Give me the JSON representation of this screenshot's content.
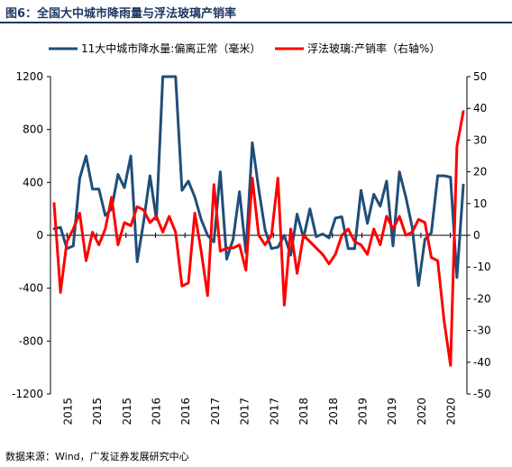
{
  "figure": {
    "title": "图6：全国大中城市降雨量与浮法玻璃产销率",
    "source": "数据来源：Wind，广发证券发展研究中心"
  },
  "chart_data": {
    "type": "line",
    "legend": [
      "11大中城市降水量:偏离正常（毫米）",
      "浮法玻璃:产销率（右轴%）"
    ],
    "colors": {
      "rain": "#1f4e79",
      "glass": "#ff0000"
    },
    "x": [
      "2015-01",
      "2015-02",
      "2015-03",
      "2015-04",
      "2015-05",
      "2015-06",
      "2015-07",
      "2015-08",
      "2015-09",
      "2015-10",
      "2015-11",
      "2015-12",
      "2016-01",
      "2016-02",
      "2016-03",
      "2016-04",
      "2016-05",
      "2016-06",
      "2016-07",
      "2016-08",
      "2016-09",
      "2016-10",
      "2016-11",
      "2016-12",
      "2017-01",
      "2017-02",
      "2017-03",
      "2017-04",
      "2017-05",
      "2017-06",
      "2017-07",
      "2017-08",
      "2017-09",
      "2017-10",
      "2017-11",
      "2017-12",
      "2018-01",
      "2018-02",
      "2018-03",
      "2018-04",
      "2018-05",
      "2018-06",
      "2018-07",
      "2018-08",
      "2018-09",
      "2018-10",
      "2018-11",
      "2018-12",
      "2019-01",
      "2019-02",
      "2019-03",
      "2019-04",
      "2019-05",
      "2019-06",
      "2019-07",
      "2019-08",
      "2019-09",
      "2019-10",
      "2019-11",
      "2019-12",
      "2020-01",
      "2020-02",
      "2020-03",
      "2020-04",
      "2020-05"
    ],
    "x_tick_labels": [
      "2015",
      "2015",
      "2015",
      "2016",
      "2016",
      "2017",
      "2017",
      "2017",
      "2018",
      "2018",
      "2019",
      "2019",
      "2020",
      "2020"
    ],
    "y_left": {
      "min": -1200,
      "max": 1200,
      "ticks": [
        1200,
        800,
        400,
        0,
        -400,
        -800,
        -1200
      ]
    },
    "y_right": {
      "min": -50,
      "max": 50,
      "ticks": [
        50,
        40,
        30,
        20,
        10,
        0,
        -10,
        -20,
        -30,
        -40,
        -50
      ]
    },
    "series": [
      {
        "name": "11大中城市降水量:偏离正常（毫米）",
        "axis": "left",
        "values": [
          50,
          60,
          -100,
          -80,
          430,
          600,
          350,
          350,
          150,
          200,
          460,
          360,
          600,
          -200,
          100,
          450,
          120,
          1200,
          1200,
          1200,
          340,
          410,
          290,
          120,
          0,
          -50,
          480,
          -180,
          -30,
          330,
          -130,
          700,
          350,
          40,
          -100,
          -90,
          0,
          -150,
          160,
          -20,
          200,
          -10,
          10,
          -20,
          130,
          140,
          -100,
          -100,
          340,
          90,
          310,
          220,
          410,
          -80,
          480,
          290,
          60,
          -380,
          -30,
          20,
          450,
          450,
          440,
          -320,
          380
        ]
      },
      {
        "name": "浮法玻璃:产销率（右轴%）",
        "axis": "right",
        "values": [
          10,
          -18,
          -2,
          2,
          7,
          -8,
          1,
          -3,
          2,
          12,
          -3,
          4,
          3,
          9,
          8,
          4,
          6,
          1,
          6,
          1,
          -16,
          -15,
          7,
          -5,
          -19,
          16,
          -5,
          -4,
          -4,
          -3,
          -11,
          18,
          0,
          -3,
          0,
          18,
          -22,
          2,
          -12,
          0,
          -2,
          -4,
          -6,
          -9,
          -6,
          0,
          2,
          -2,
          -3,
          -6,
          2,
          -3,
          6,
          2,
          6,
          0,
          1,
          5,
          4,
          -7,
          -8,
          -27,
          -41,
          28,
          39
        ]
      }
    ]
  }
}
